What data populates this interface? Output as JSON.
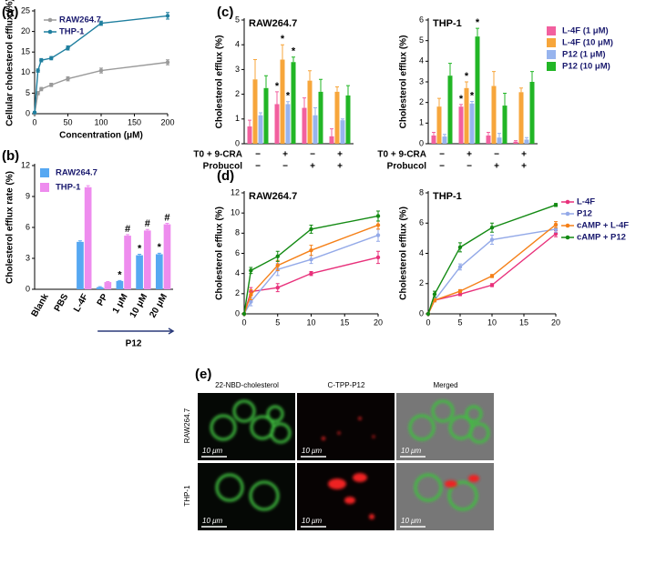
{
  "chart_data": [
    {
      "panel": "(a)",
      "type": "line",
      "xlabel": "Concentration (μM)",
      "ylabel": "Cellular cholesterol efflux (%)",
      "x": [
        0,
        5,
        10,
        25,
        50,
        100,
        200
      ],
      "series": [
        {
          "name": "RAW264.7",
          "color": "#9a9a9a",
          "values": [
            0,
            5,
            6,
            7,
            8.5,
            10.5,
            12.5
          ],
          "errors": [
            0.2,
            0.4,
            0.4,
            0.4,
            0.5,
            0.6,
            0.6
          ]
        },
        {
          "name": "THP-1",
          "color": "#1f7f9f",
          "values": [
            0.3,
            10.5,
            13,
            13.5,
            16,
            22,
            23.8
          ],
          "errors": [
            0.2,
            0.4,
            0.4,
            0.4,
            0.5,
            0.5,
            0.8
          ]
        }
      ],
      "xlim": [
        0,
        200
      ],
      "xticks": [
        0,
        50,
        100,
        150,
        200
      ],
      "ylim": [
        0,
        25
      ],
      "yticks": [
        0,
        5,
        10,
        15,
        20,
        25
      ],
      "legend": "upper left"
    },
    {
      "panel": "(b)",
      "type": "bar",
      "ylabel": "Cholesterol efflux rate (%)",
      "categories": [
        "Blank",
        "PBS",
        "L-4F",
        "PP",
        "1 μM",
        "10 μM",
        "20 μM"
      ],
      "group_label": "P12",
      "series": [
        {
          "name": "RAW264.7",
          "color": "#56a8f2",
          "values": [
            0,
            0,
            4.6,
            0.2,
            0.8,
            3.3,
            3.4
          ],
          "errors": [
            0,
            0,
            0.1,
            0.05,
            0.05,
            0.1,
            0.1
          ],
          "annotations": [
            null,
            null,
            null,
            null,
            "*",
            "*",
            "*"
          ]
        },
        {
          "name": "THP-1",
          "color": "#ee8cee",
          "values": [
            0,
            0,
            9.9,
            0.7,
            5.2,
            5.7,
            6.3
          ],
          "errors": [
            0,
            0,
            0.15,
            0.05,
            0.1,
            0.1,
            0.1
          ],
          "annotations": [
            null,
            null,
            null,
            null,
            "#",
            "#",
            "#"
          ]
        }
      ],
      "ylim": [
        0,
        12
      ],
      "yticks": [
        0,
        3,
        6,
        9,
        12
      ],
      "legend": "upper left"
    },
    {
      "panel": "(c)",
      "type": "bar",
      "title": "RAW264.7",
      "ylabel": "Cholesterol efflux (%)",
      "categories": [
        null,
        null,
        null,
        null
      ],
      "conditions": [
        {
          "name": "T0 + 9-CRA",
          "values": [
            "−",
            "+",
            "−",
            "+"
          ]
        },
        {
          "name": "Probucol",
          "values": [
            "−",
            "−",
            "+",
            "+"
          ]
        }
      ],
      "series": [
        {
          "name": "L-4F (1 μM)",
          "color": "#f2609f",
          "values": [
            0.7,
            1.6,
            1.45,
            0.3
          ],
          "errors": [
            0.25,
            0.5,
            0.4,
            0.3
          ],
          "annotations": [
            null,
            "*",
            null,
            null
          ]
        },
        {
          "name": "L-4F (10 μM)",
          "color": "#f7a63b",
          "values": [
            2.6,
            3.4,
            2.55,
            2.1
          ],
          "errors": [
            0.8,
            0.6,
            0.4,
            0.2
          ],
          "annotations": [
            null,
            "*",
            null,
            null
          ]
        },
        {
          "name": "P12 (1 μM)",
          "color": "#97b4ee",
          "values": [
            1.15,
            1.6,
            1.15,
            0.95
          ],
          "errors": [
            0.1,
            0.1,
            0.3,
            0.05
          ],
          "annotations": [
            null,
            "*",
            null,
            null
          ]
        },
        {
          "name": "P12 (10 μM)",
          "color": "#22b626",
          "values": [
            2.25,
            3.3,
            2.1,
            1.95
          ],
          "errors": [
            0.5,
            0.2,
            0.5,
            0.4
          ],
          "annotations": [
            null,
            "*",
            null,
            null
          ]
        }
      ],
      "ylim": [
        0,
        5
      ],
      "yticks": [
        0,
        1,
        2,
        3,
        4,
        5
      ]
    },
    {
      "type": "bar",
      "title": "THP-1",
      "ylabel": "Cholesterol efflux (%)",
      "categories": [
        null,
        null,
        null,
        null
      ],
      "conditions": [
        {
          "name": "T0 + 9-CRA",
          "values": [
            "−",
            "+",
            "−",
            "+"
          ]
        },
        {
          "name": "Probucol",
          "values": [
            "−",
            "−",
            "+",
            "+"
          ]
        }
      ],
      "series": [
        {
          "name": "L-4F (1 μM)",
          "color": "#f2609f",
          "values": [
            0.4,
            1.8,
            0.4,
            0.1
          ],
          "errors": [
            0.15,
            0.1,
            0.15,
            0.05
          ],
          "annotations": [
            null,
            "*",
            null,
            null
          ]
        },
        {
          "name": "L-4F (10 μM)",
          "color": "#f7a63b",
          "values": [
            1.8,
            2.7,
            2.8,
            2.5
          ],
          "errors": [
            0.4,
            0.3,
            0.7,
            0.2
          ],
          "annotations": [
            null,
            "*",
            null,
            null
          ]
        },
        {
          "name": "P12 (1 μM)",
          "color": "#97b4ee",
          "values": [
            0.35,
            1.95,
            0.3,
            0.2
          ],
          "errors": [
            0.1,
            0.1,
            0.2,
            0.1
          ],
          "annotations": [
            null,
            "*",
            null,
            null
          ]
        },
        {
          "name": "P12 (10 μM)",
          "color": "#22b626",
          "values": [
            3.3,
            5.2,
            1.85,
            3.0
          ],
          "errors": [
            0.6,
            0.4,
            0.6,
            0.5
          ],
          "annotations": [
            null,
            "*",
            null,
            null
          ]
        }
      ],
      "ylim": [
        0,
        6
      ],
      "yticks": [
        0,
        1,
        2,
        3,
        4,
        5,
        6
      ],
      "legend": "right"
    },
    {
      "panel": "(d)",
      "type": "line",
      "title": "RAW264.7",
      "ylabel": "Cholesterol efflux (%)",
      "x": [
        0,
        1,
        5,
        10,
        20
      ],
      "series": [
        {
          "name": "L-4F",
          "color": "#e8317b",
          "values": [
            0,
            2.2,
            2.6,
            4.0,
            5.6
          ],
          "errors": [
            0,
            0.4,
            0.4,
            0.2,
            0.6
          ]
        },
        {
          "name": "P12",
          "color": "#93a9e8",
          "values": [
            0,
            1.2,
            4.4,
            5.4,
            7.8
          ],
          "errors": [
            0,
            0.4,
            0.6,
            0.4,
            0.6
          ]
        },
        {
          "name": "cAMP + L-4F",
          "color": "#f58018",
          "values": [
            0,
            1.9,
            4.8,
            6.3,
            8.8
          ],
          "errors": [
            0,
            0.5,
            0.5,
            0.5,
            0.4
          ]
        },
        {
          "name": "cAMP + P12",
          "color": "#138a13",
          "values": [
            0,
            4.3,
            5.7,
            8.4,
            9.7
          ],
          "errors": [
            0,
            0.3,
            0.5,
            0.4,
            0.5
          ]
        }
      ],
      "xlim": [
        0,
        20
      ],
      "xticks": [
        0,
        5,
        10,
        15,
        20
      ],
      "ylim": [
        0,
        12
      ],
      "yticks": [
        0,
        2,
        4,
        6,
        8,
        10,
        12
      ]
    },
    {
      "type": "line",
      "title": "THP-1",
      "ylabel": "Cholesterol efflux (%)",
      "x": [
        0,
        1,
        5,
        10,
        20
      ],
      "series": [
        {
          "name": "L-4F",
          "color": "#e8317b",
          "values": [
            0,
            0.9,
            1.3,
            1.9,
            5.3
          ],
          "errors": [
            0,
            0.1,
            0.1,
            0.1,
            0.2
          ]
        },
        {
          "name": "P12",
          "color": "#93a9e8",
          "values": [
            0,
            0.9,
            3.1,
            4.9,
            5.6
          ],
          "errors": [
            0,
            0.1,
            0.2,
            0.3,
            0.2
          ]
        },
        {
          "name": "cAMP + L-4F",
          "color": "#f58018",
          "values": [
            0,
            0.9,
            1.5,
            2.5,
            5.9
          ],
          "errors": [
            0,
            0.1,
            0.1,
            0.1,
            0.2
          ]
        },
        {
          "name": "cAMP + P12",
          "color": "#138a13",
          "values": [
            0,
            1.3,
            4.4,
            5.7,
            7.2
          ],
          "errors": [
            0,
            0.2,
            0.3,
            0.3,
            0.1
          ]
        }
      ],
      "xlim": [
        0,
        20
      ],
      "xticks": [
        0,
        5,
        10,
        15,
        20
      ],
      "ylim": [
        0,
        8
      ],
      "yticks": [
        0,
        2,
        4,
        6,
        8
      ],
      "legend": "right"
    }
  ],
  "figure_e": {
    "panel": "(e)",
    "columns": [
      "22-NBD-cholesterol",
      "C-TPP-P12",
      "Merged"
    ],
    "rows": [
      "RAW264.7",
      "THP-1"
    ],
    "scale_bar": "10 μm"
  }
}
